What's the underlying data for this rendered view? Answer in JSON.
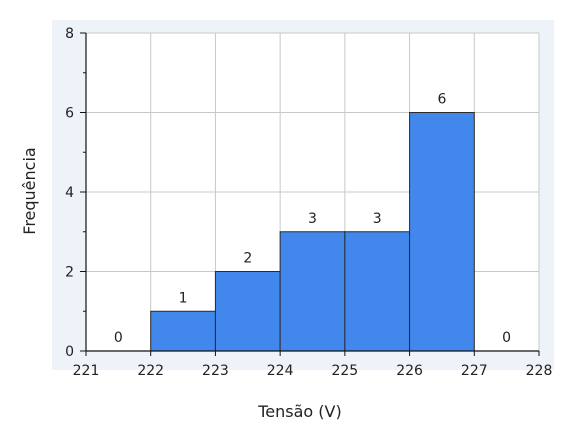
{
  "chart_data": {
    "type": "bar",
    "subtype": "histogram",
    "title": "",
    "xlabel": "Tensão (V)",
    "ylabel": "Frequência",
    "bin_edges": [
      221,
      222,
      223,
      224,
      225,
      226,
      227,
      228
    ],
    "values": [
      0,
      1,
      2,
      3,
      3,
      6,
      0
    ],
    "data_labels": [
      "0",
      "1",
      "2",
      "3",
      "3",
      "6",
      "0"
    ],
    "x_ticks": [
      "221",
      "222",
      "223",
      "224",
      "225",
      "226",
      "227",
      "228"
    ],
    "y_ticks": [
      "0",
      "2",
      "4",
      "6",
      "8"
    ],
    "xlim": [
      221,
      228
    ],
    "ylim": [
      0,
      8
    ],
    "grid": true,
    "legend": "none",
    "colors": {
      "bar_fill": "#4287ec",
      "bar_stroke": "#2b2b2b",
      "plot_background": "#ffffff",
      "outer_background": "#eef3fa",
      "grid": "#c8c8c8",
      "axis": "#111111"
    }
  }
}
